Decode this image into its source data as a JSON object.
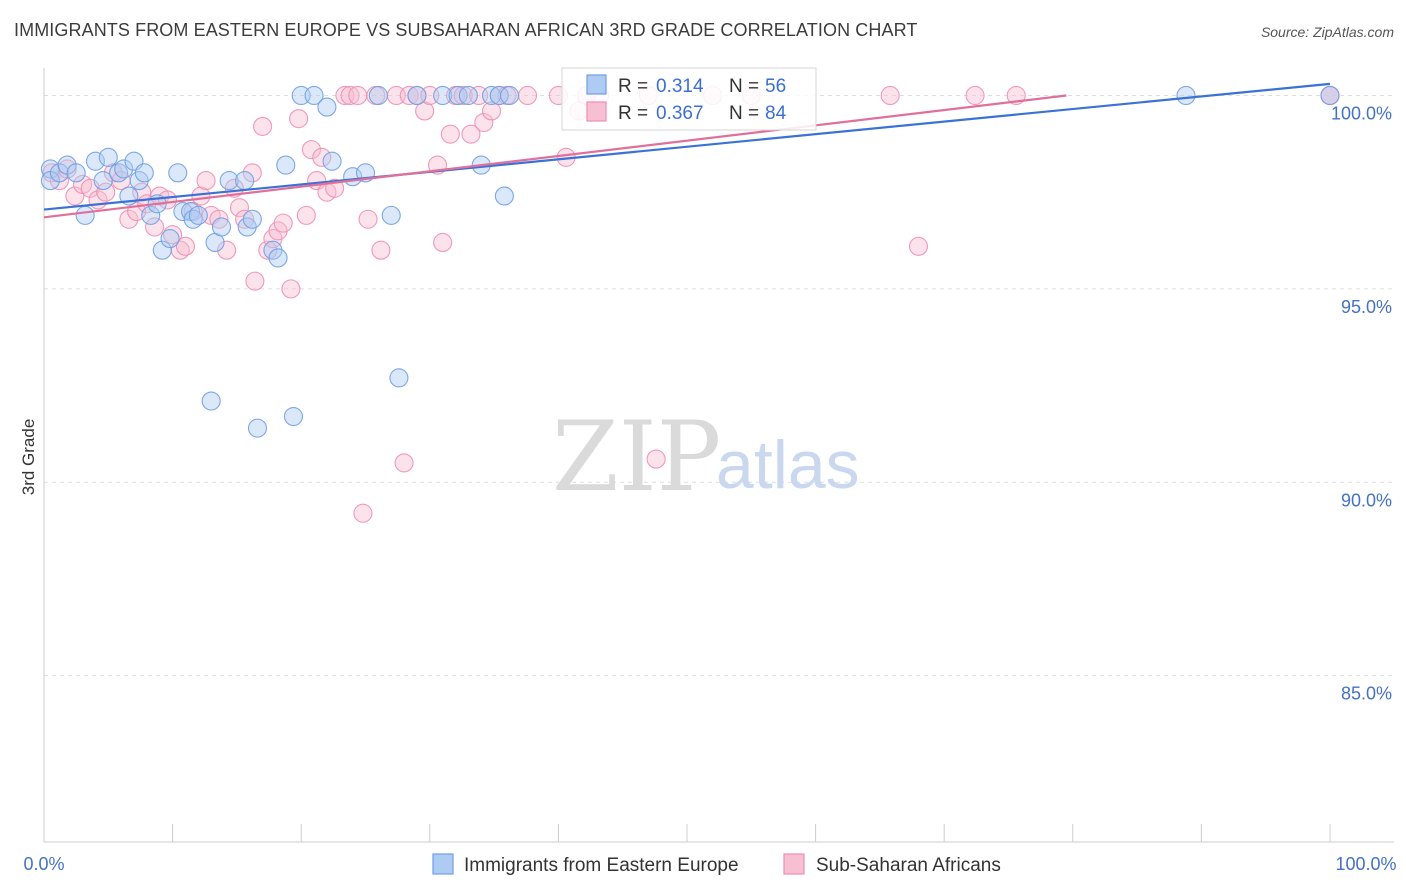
{
  "title": "IMMIGRANTS FROM EASTERN EUROPE VS SUBSAHARAN AFRICAN 3RD GRADE CORRELATION CHART",
  "source": "Source: ZipAtlas.com",
  "watermark": {
    "zip": "ZIP",
    "atlas": "atlas"
  },
  "colors": {
    "blue": "#6f9fe4",
    "blue_line": "#3a72d6",
    "blue_fill": "#aecbf3",
    "pink": "#f08fb0",
    "pink_line": "#e0709a",
    "pink_fill": "#f7bfd2",
    "grid": "#dddddd",
    "tick_text": "#4472c4"
  },
  "legend": {
    "r_label": "R =",
    "n_label": "N =",
    "rows": [
      {
        "r": "0.314",
        "n": "56",
        "color": "blue"
      },
      {
        "r": "0.367",
        "n": "84",
        "color": "pink"
      }
    ]
  },
  "chart_data": {
    "type": "scatter",
    "title": "IMMIGRANTS FROM EASTERN EUROPE VS SUBSAHARAN AFRICAN 3RD GRADE CORRELATION CHART",
    "xlabel": "",
    "ylabel": "3rd Grade",
    "xlim": [
      0,
      100
    ],
    "ylim": [
      80.7,
      100.4
    ],
    "x_tick_labels": [
      "0.0%",
      "100.0%"
    ],
    "y_ticks": [
      {
        "value": 100,
        "label": "100.0%"
      },
      {
        "value": 95,
        "label": "95.0%"
      },
      {
        "value": 90,
        "label": "90.0%"
      },
      {
        "value": 85,
        "label": "85.0%"
      }
    ],
    "grid": true,
    "legend_position": "bottom",
    "series": [
      {
        "name": "Immigrants from Eastern Europe",
        "color": "blue",
        "trend": {
          "x": [
            0,
            100
          ],
          "y": [
            97.05,
            100.3
          ]
        },
        "points": [
          [
            0.5,
            98.1
          ],
          [
            0.5,
            97.8
          ],
          [
            1.2,
            98.0
          ],
          [
            1.8,
            98.2
          ],
          [
            2.5,
            98.0
          ],
          [
            3.2,
            96.9
          ],
          [
            4.0,
            98.3
          ],
          [
            4.6,
            97.8
          ],
          [
            5.0,
            98.4
          ],
          [
            5.8,
            98.0
          ],
          [
            6.2,
            98.1
          ],
          [
            6.6,
            97.4
          ],
          [
            7.0,
            98.3
          ],
          [
            7.4,
            97.8
          ],
          [
            7.8,
            98.0
          ],
          [
            8.3,
            96.9
          ],
          [
            8.8,
            97.2
          ],
          [
            9.2,
            96.0
          ],
          [
            9.8,
            96.3
          ],
          [
            10.4,
            98.0
          ],
          [
            10.8,
            97.0
          ],
          [
            11.4,
            97.0
          ],
          [
            11.6,
            96.8
          ],
          [
            12.0,
            96.9
          ],
          [
            13.0,
            92.1
          ],
          [
            13.3,
            96.2
          ],
          [
            13.8,
            96.6
          ],
          [
            14.4,
            97.8
          ],
          [
            15.6,
            97.8
          ],
          [
            15.8,
            96.6
          ],
          [
            16.2,
            96.8
          ],
          [
            16.6,
            91.4
          ],
          [
            17.8,
            96.0
          ],
          [
            18.2,
            95.8
          ],
          [
            18.8,
            98.2
          ],
          [
            19.4,
            91.7
          ],
          [
            20.0,
            100.0
          ],
          [
            21.0,
            100.0
          ],
          [
            22.0,
            99.7
          ],
          [
            22.4,
            98.3
          ],
          [
            24.0,
            97.9
          ],
          [
            25.0,
            98.0
          ],
          [
            26.0,
            100.0
          ],
          [
            27.0,
            96.9
          ],
          [
            27.6,
            92.7
          ],
          [
            29.0,
            100.0
          ],
          [
            31.0,
            100.0
          ],
          [
            32.2,
            100.0
          ],
          [
            33.0,
            100.0
          ],
          [
            34.0,
            98.2
          ],
          [
            34.8,
            100.0
          ],
          [
            35.4,
            100.0
          ],
          [
            35.8,
            97.4
          ],
          [
            36.2,
            100.0
          ],
          [
            88.8,
            100.0
          ],
          [
            100.0,
            100.0
          ]
        ]
      },
      {
        "name": "Sub-Saharan Africans",
        "color": "pink",
        "trend": {
          "x": [
            0,
            79.5
          ],
          "y": [
            96.85,
            100.0
          ]
        },
        "points": [
          [
            0.6,
            98.0
          ],
          [
            1.2,
            97.8
          ],
          [
            1.8,
            98.1
          ],
          [
            2.4,
            97.4
          ],
          [
            3.0,
            97.7
          ],
          [
            3.6,
            97.6
          ],
          [
            4.2,
            97.3
          ],
          [
            4.8,
            97.5
          ],
          [
            5.4,
            98.0
          ],
          [
            6.0,
            97.8
          ],
          [
            6.6,
            96.8
          ],
          [
            7.2,
            97.0
          ],
          [
            7.6,
            97.5
          ],
          [
            8.0,
            97.2
          ],
          [
            8.6,
            96.6
          ],
          [
            9.0,
            97.4
          ],
          [
            9.6,
            97.3
          ],
          [
            10.0,
            96.4
          ],
          [
            10.6,
            96.0
          ],
          [
            11.0,
            96.1
          ],
          [
            11.6,
            97.0
          ],
          [
            12.2,
            97.4
          ],
          [
            12.6,
            97.8
          ],
          [
            13.0,
            96.9
          ],
          [
            13.6,
            96.8
          ],
          [
            14.2,
            96.0
          ],
          [
            14.8,
            97.6
          ],
          [
            15.2,
            97.1
          ],
          [
            15.6,
            96.8
          ],
          [
            16.2,
            98.0
          ],
          [
            16.4,
            95.2
          ],
          [
            17.0,
            99.2
          ],
          [
            17.4,
            96.0
          ],
          [
            17.8,
            96.3
          ],
          [
            18.2,
            96.5
          ],
          [
            18.6,
            96.7
          ],
          [
            19.2,
            95.0
          ],
          [
            19.8,
            99.4
          ],
          [
            20.4,
            96.9
          ],
          [
            20.8,
            98.6
          ],
          [
            21.2,
            97.8
          ],
          [
            21.6,
            98.4
          ],
          [
            22.0,
            97.5
          ],
          [
            22.6,
            97.6
          ],
          [
            23.4,
            100.0
          ],
          [
            23.8,
            100.0
          ],
          [
            24.4,
            100.0
          ],
          [
            24.8,
            89.2
          ],
          [
            25.2,
            96.8
          ],
          [
            25.8,
            100.0
          ],
          [
            26.2,
            96.0
          ],
          [
            27.4,
            100.0
          ],
          [
            28.0,
            90.5
          ],
          [
            28.4,
            100.0
          ],
          [
            29.0,
            100.0
          ],
          [
            29.6,
            99.6
          ],
          [
            30.0,
            100.0
          ],
          [
            30.6,
            98.2
          ],
          [
            31.0,
            96.2
          ],
          [
            31.6,
            99.0
          ],
          [
            32.0,
            100.0
          ],
          [
            32.6,
            100.0
          ],
          [
            33.2,
            99.0
          ],
          [
            33.8,
            100.0
          ],
          [
            34.2,
            99.3
          ],
          [
            34.8,
            99.6
          ],
          [
            35.4,
            100.0
          ],
          [
            36.0,
            100.0
          ],
          [
            37.6,
            100.0
          ],
          [
            40.0,
            100.0
          ],
          [
            40.6,
            98.4
          ],
          [
            41.6,
            99.6
          ],
          [
            42.2,
            100.0
          ],
          [
            43.2,
            100.0
          ],
          [
            47.0,
            100.0
          ],
          [
            47.6,
            90.6
          ],
          [
            52.0,
            100.0
          ],
          [
            55.0,
            100.0
          ],
          [
            65.8,
            100.0
          ],
          [
            68.0,
            96.1
          ],
          [
            72.4,
            100.0
          ],
          [
            75.6,
            100.0
          ],
          [
            100.0,
            100.0
          ],
          [
            100.0,
            100.0
          ]
        ]
      }
    ]
  }
}
